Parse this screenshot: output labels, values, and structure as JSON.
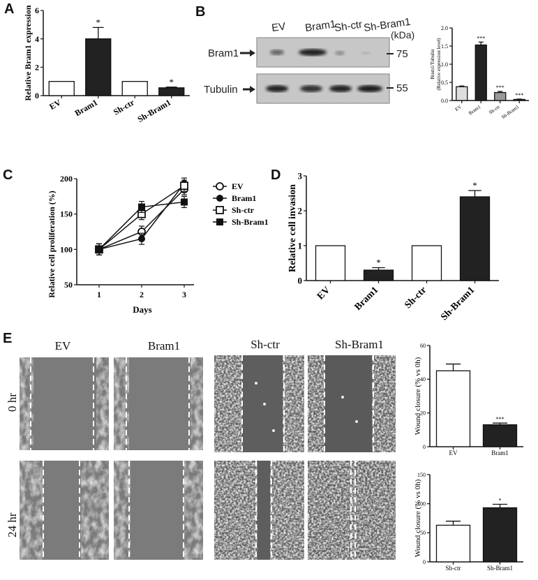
{
  "panels": {
    "a": "A",
    "b": "B",
    "c": "C",
    "d": "D",
    "e": "E"
  },
  "chart_data": [
    {
      "id": "A",
      "type": "bar",
      "categories": [
        "EV",
        "Bram1",
        "Sh-ctr",
        "Sh-Bram1"
      ],
      "values": [
        1,
        4.0,
        1,
        0.55
      ],
      "errors": [
        0,
        0.8,
        0,
        0.05
      ],
      "sig": [
        "",
        "*",
        "",
        "*"
      ],
      "fills": [
        "#ffffff",
        "#222222",
        "#ffffff",
        "#222222"
      ],
      "ylabel": "Relative Bram1 expression",
      "yticks": [
        0,
        2,
        4,
        6
      ],
      "ylim": [
        0,
        6
      ]
    },
    {
      "id": "B_blot",
      "type": "table",
      "lanes": [
        "EV",
        "Bram1",
        "Sh-ctr",
        "Sh-Bram1"
      ],
      "unit": "(kDa)",
      "rows": [
        {
          "name": "Bram1",
          "kda": "75"
        },
        {
          "name": "Tubulin",
          "kda": "55"
        }
      ]
    },
    {
      "id": "B_quant",
      "type": "bar",
      "categories": [
        "EV",
        "Bram1",
        "Sh-ctr",
        "Sh-Bram1"
      ],
      "values": [
        0.38,
        1.53,
        0.22,
        0.03
      ],
      "errors": [
        0.02,
        0.08,
        0.03,
        0.01
      ],
      "sig": [
        "",
        "***",
        "***",
        "***"
      ],
      "fills": [
        "#dddddd",
        "#222222",
        "#9a9a9a",
        "#555555"
      ],
      "ylabel": [
        "Bram1/Tubulin",
        "(Relative expression level)"
      ],
      "yticks": [
        "0.0",
        "0.5",
        "1.0",
        "1.5",
        "2.0"
      ],
      "ylim": [
        0,
        2
      ]
    },
    {
      "id": "C",
      "type": "line",
      "x": [
        1,
        2,
        3
      ],
      "series": [
        {
          "name": "EV",
          "values": [
            100,
            125,
            185
          ],
          "marker": "open-circle"
        },
        {
          "name": "Bram1",
          "values": [
            100,
            115,
            193
          ],
          "marker": "filled-circle"
        },
        {
          "name": "Sh-ctr",
          "values": [
            100,
            150,
            190
          ],
          "marker": "open-square"
        },
        {
          "name": "Sh-Bram1",
          "values": [
            100,
            160,
            167
          ],
          "marker": "filled-square"
        }
      ],
      "xlabel": "Days",
      "ylabel": "Relative cell proliferation (%)",
      "xticks": [
        "1",
        "2",
        "3"
      ],
      "yticks": [
        "50",
        "100",
        "150",
        "200"
      ],
      "ylim": [
        50,
        200
      ]
    },
    {
      "id": "D",
      "type": "bar",
      "categories": [
        "EV",
        "Bram1",
        "Sh-ctr",
        "Sh-Bram1"
      ],
      "values": [
        1,
        0.3,
        1,
        2.4
      ],
      "errors": [
        0,
        0.07,
        0,
        0.18
      ],
      "sig": [
        "",
        "*",
        "",
        "*"
      ],
      "fills": [
        "#ffffff",
        "#222222",
        "#ffffff",
        "#222222"
      ],
      "ylabel": "Relative cell invasion",
      "yticks": [
        "0",
        "1",
        "2",
        "3"
      ],
      "ylim": [
        0,
        3
      ]
    },
    {
      "id": "E_top",
      "type": "bar",
      "categories": [
        "EV",
        "Bram1"
      ],
      "values": [
        45,
        13
      ],
      "errors": [
        4,
        1
      ],
      "sig": [
        "",
        "***"
      ],
      "fills": [
        "#ffffff",
        "#222222"
      ],
      "ylabel": "Wound closure (% vs 0h)",
      "yticks": [
        "0",
        "20",
        "40",
        "60"
      ],
      "ylim": [
        0,
        60
      ]
    },
    {
      "id": "E_bottom",
      "type": "bar",
      "categories": [
        "Sh-ctr",
        "Sh-Bram1"
      ],
      "values": [
        63,
        93
      ],
      "errors": [
        7,
        6
      ],
      "sig": [
        "",
        "*"
      ],
      "fills": [
        "#ffffff",
        "#222222"
      ],
      "ylabel": "Wound closure (% vs 0h)",
      "yticks": [
        "0",
        "50",
        "100",
        "150"
      ],
      "ylim": [
        0,
        150
      ]
    }
  ],
  "micrographs": {
    "columns": [
      "EV",
      "Bram1",
      "Sh-ctr",
      "Sh-Bram1"
    ],
    "rows": [
      "0 hr",
      "24 hr"
    ]
  }
}
